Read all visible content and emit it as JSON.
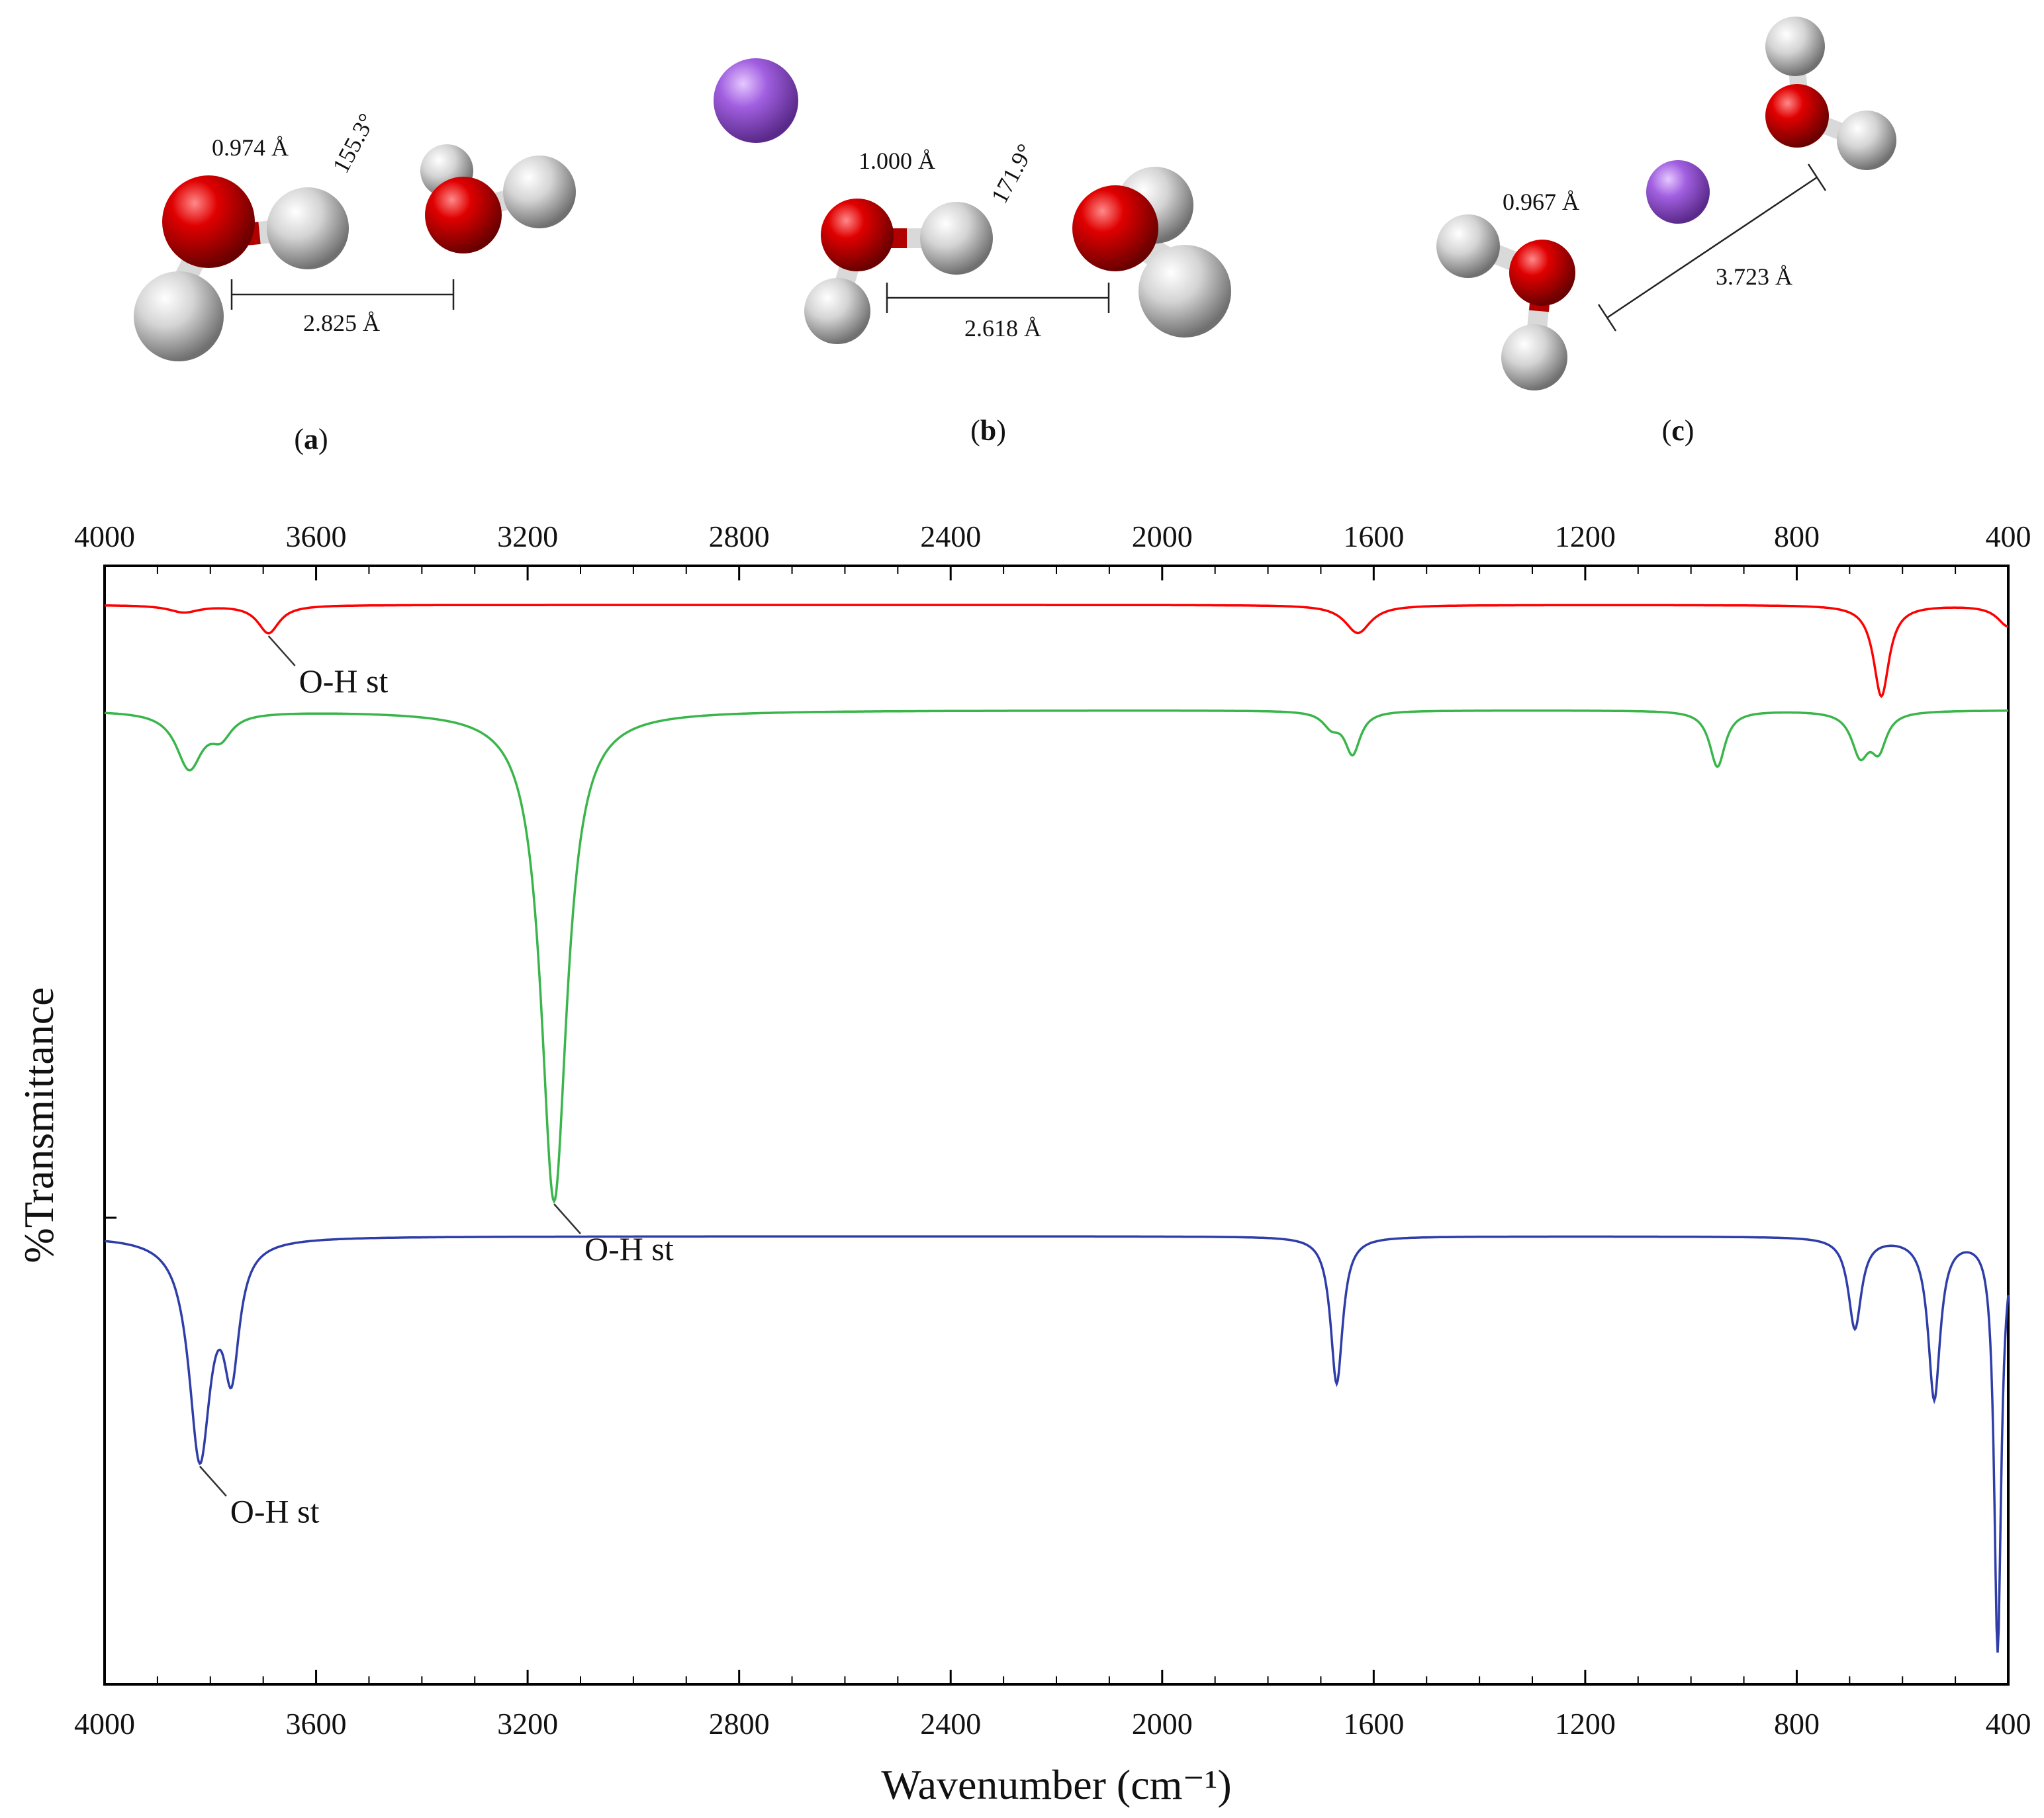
{
  "panels": [
    {
      "label": "a",
      "bond_length": "0.974 Å",
      "angle": "155.3°",
      "distance": "2.825 Å"
    },
    {
      "label": "b",
      "bond_length": "1.000 Å",
      "angle": "171.9°",
      "distance": "2.618 Å"
    },
    {
      "label": "c",
      "bond_length": "0.967 Å",
      "distance": "3.723 Å"
    }
  ],
  "colors": {
    "oxygen": "#d40000",
    "hydrogen": "#c8c8c8",
    "ion": "#9b59d6"
  },
  "chart_data": {
    "type": "line",
    "xlabel": "Wavenumber (cm⁻¹)",
    "ylabel": "%Transmittance",
    "xlim": [
      4000,
      400
    ],
    "x_reversed": true,
    "xticks": [
      "4000",
      "3600",
      "3200",
      "2800",
      "2400",
      "2000",
      "1600",
      "1200",
      "800",
      "400"
    ],
    "xtick_values": [
      4000,
      3600,
      3200,
      2800,
      2400,
      2000,
      1600,
      1200,
      800,
      400
    ],
    "y_ticks_labels": "none",
    "legend": "none",
    "series": [
      {
        "color": "#ff0000",
        "baseline": 0.9,
        "bands": [
          {
            "x": 3850,
            "depth": 0.01,
            "width": 35
          },
          {
            "x": 3690,
            "depth": 0.04,
            "width": 25
          },
          {
            "x": 1630,
            "depth": 0.04,
            "width": 30
          },
          {
            "x": 640,
            "depth": 0.13,
            "width": 18
          },
          {
            "x": 400,
            "depth": 0.03,
            "width": 25
          }
        ]
      },
      {
        "color": "#39b54a",
        "baseline": 0.75,
        "bands": [
          {
            "x": 3840,
            "depth": 0.08,
            "width": 30
          },
          {
            "x": 3780,
            "depth": 0.03,
            "width": 25
          },
          {
            "x": 3150,
            "depth": 0.7,
            "width": 30
          },
          {
            "x": 1680,
            "depth": 0.02,
            "width": 20
          },
          {
            "x": 1640,
            "depth": 0.06,
            "width": 18
          },
          {
            "x": 950,
            "depth": 0.08,
            "width": 18
          },
          {
            "x": 680,
            "depth": 0.06,
            "width": 20
          },
          {
            "x": 645,
            "depth": 0.05,
            "width": 18
          }
        ]
      },
      {
        "color": "#2e3da8",
        "baseline": 0.0,
        "bands": [
          {
            "x": 3820,
            "depth": 0.31,
            "width": 25
          },
          {
            "x": 3760,
            "depth": 0.17,
            "width": 18
          },
          {
            "x": 1670,
            "depth": 0.21,
            "width": 14
          },
          {
            "x": 690,
            "depth": 0.13,
            "width": 15
          },
          {
            "x": 540,
            "depth": 0.23,
            "width": 14
          },
          {
            "x": 420,
            "depth": 0.59,
            "width": 8
          }
        ]
      }
    ],
    "annotations": [
      {
        "text": "O-H st",
        "x": 3690,
        "series": 0
      },
      {
        "text": "O-H st",
        "x": 3150,
        "series": 1
      },
      {
        "text": "O-H st",
        "x": 3820,
        "series": 2
      }
    ]
  }
}
